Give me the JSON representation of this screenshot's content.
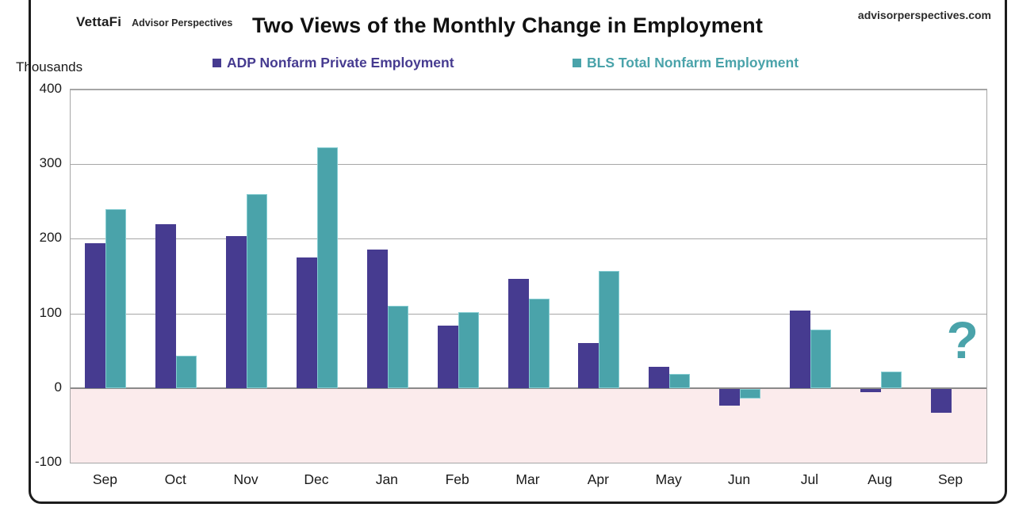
{
  "header": {
    "logo_brand": "VettaFi",
    "logo_sub": "Advisor Perspectives",
    "title": "Two Views of the Monthly Change in Employment",
    "site": "advisorperspectives.com"
  },
  "axis": {
    "unit_label": "Thousands"
  },
  "legend": [
    {
      "label": "ADP Nonfarm Private Employment",
      "color": "#463b90"
    },
    {
      "label": "BLS Total Nonfarm Employment",
      "color": "#4aa3aa"
    }
  ],
  "annotation": {
    "question_mark": "?",
    "color": "#4aa3aa"
  },
  "chart_data": {
    "type": "bar",
    "title": "Two Views of the Monthly Change in Employment",
    "ylabel": "Thousands",
    "categories": [
      "Sep",
      "Oct",
      "Nov",
      "Dec",
      "Jan",
      "Feb",
      "Mar",
      "Apr",
      "May",
      "Jun",
      "Jul",
      "Aug",
      "Sep"
    ],
    "series": [
      {
        "name": "ADP Nonfarm Private Employment",
        "color": "#463b90",
        "values": [
          194,
          220,
          204,
          175,
          186,
          84,
          146,
          60,
          28,
          -22,
          104,
          -4,
          -32
        ]
      },
      {
        "name": "BLS Total Nonfarm Employment",
        "color": "#4aa3aa",
        "edge_color": "#86cdd2",
        "values": [
          240,
          43,
          260,
          322,
          110,
          102,
          120,
          157,
          19,
          -13,
          78,
          22,
          null
        ]
      }
    ],
    "ylim": [
      -100,
      400
    ],
    "yticks": [
      400,
      300,
      200,
      100,
      0,
      -100
    ],
    "grid": true,
    "negative_region_color": "#fbebec",
    "legend_position": "top",
    "missing_last_bls_annotation": "?"
  }
}
